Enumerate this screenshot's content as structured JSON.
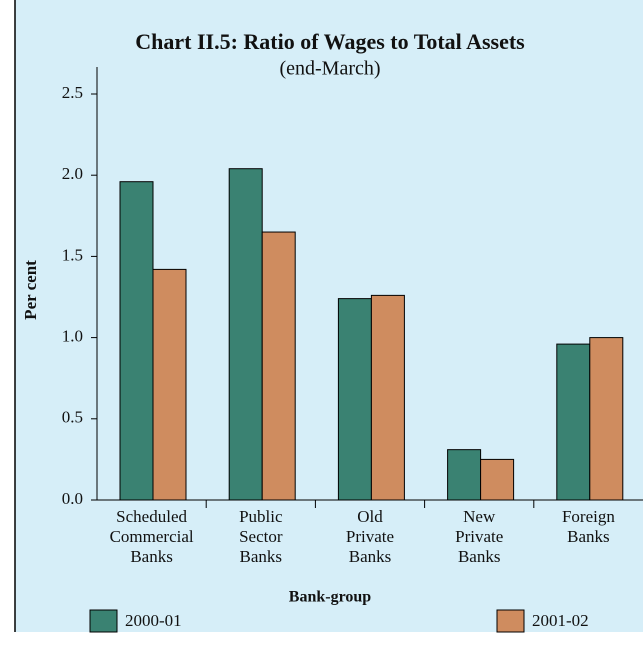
{
  "chart_data": {
    "type": "bar",
    "title": "Chart II.5: Ratio of Wages to Total Assets",
    "subtitle": "(end-March)",
    "y_label": "Per cent",
    "x_label": "Bank-group",
    "categories": [
      "Scheduled Commercial Banks",
      "Public Sector Banks",
      "Old Private Banks",
      "New Private Banks",
      "Foreign Banks"
    ],
    "series": [
      {
        "name": "2000-01",
        "color": "#3a8272",
        "values": [
          1.96,
          2.04,
          1.24,
          0.31,
          0.96
        ]
      },
      {
        "name": "2001-02",
        "color": "#cf8c5f",
        "values": [
          1.42,
          1.65,
          1.26,
          0.25,
          1.0
        ]
      }
    ],
    "ylim": [
      0,
      2.5
    ],
    "yticks": [
      {
        "value": 0,
        "label": "0.0"
      },
      {
        "value": 0.5,
        "label": "0.5"
      },
      {
        "value": 1,
        "label": "1.0"
      },
      {
        "value": 1.5,
        "label": "1.5"
      },
      {
        "value": 2,
        "label": "2.0"
      },
      {
        "value": 2.5,
        "label": "2.5"
      }
    ]
  }
}
